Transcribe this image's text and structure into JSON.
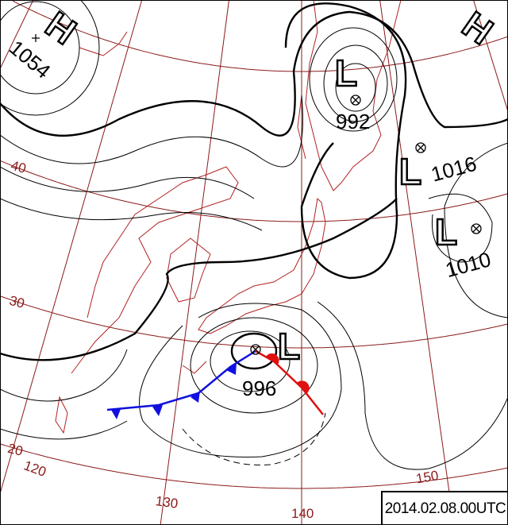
{
  "chart_data": {
    "type": "weather-map",
    "valid_time": "2014.02.08.00UTC",
    "latitude_labels": [
      "40",
      "30",
      "20"
    ],
    "longitude_labels": [
      "120",
      "130",
      "140",
      "150"
    ],
    "systems": [
      {
        "type": "H",
        "pressure": "1054"
      },
      {
        "type": "H",
        "pressure": ""
      },
      {
        "type": "L",
        "pressure": "992"
      },
      {
        "type": "L",
        "pressure": "1016"
      },
      {
        "type": "L",
        "pressure": "1010"
      },
      {
        "type": "L",
        "pressure": "996"
      }
    ],
    "fronts": [
      {
        "type": "cold",
        "color": "#1010e0"
      },
      {
        "type": "warm",
        "color": "#e01010"
      }
    ],
    "colors": {
      "grid": "#8b1a1a",
      "coast": "#b22222",
      "isobar": "#000000"
    }
  }
}
